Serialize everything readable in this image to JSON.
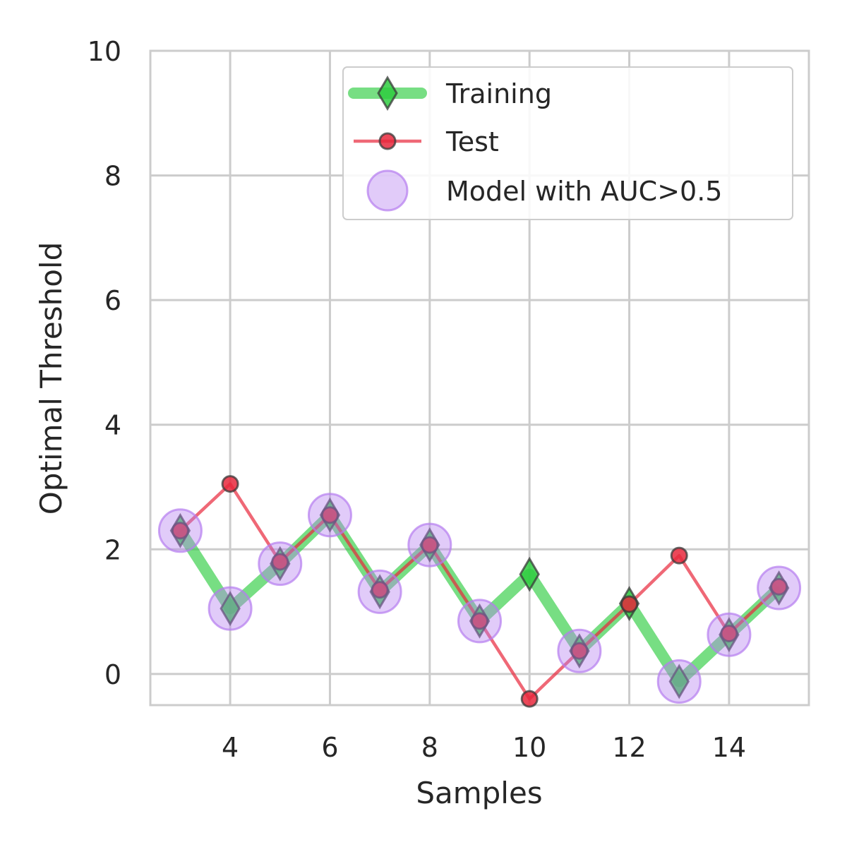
{
  "chart_data": {
    "type": "line",
    "title": "",
    "xlabel": "Samples",
    "ylabel": "Optimal Threshold",
    "xlim": [
      2.4,
      15.6
    ],
    "ylim": [
      -0.5,
      10
    ],
    "xticks": [
      4,
      6,
      8,
      10,
      12,
      14
    ],
    "yticks": [
      0,
      2,
      4,
      6,
      8,
      10
    ],
    "grid": true,
    "legend_position": "top-right",
    "x": [
      3,
      4,
      5,
      6,
      7,
      8,
      9,
      10,
      11,
      12,
      13,
      14,
      15
    ],
    "series": [
      {
        "name": "Training",
        "marker": "diamond",
        "color": "#2ecc40",
        "values": [
          2.3,
          1.05,
          1.77,
          2.55,
          1.32,
          2.07,
          0.85,
          1.6,
          0.37,
          1.13,
          -0.12,
          0.63,
          1.38
        ]
      },
      {
        "name": "Test",
        "marker": "circle",
        "color": "#e8283c",
        "values": [
          2.3,
          3.05,
          1.8,
          2.55,
          1.35,
          2.07,
          0.85,
          -0.4,
          0.37,
          1.12,
          1.9,
          0.65,
          1.4
        ]
      },
      {
        "name": "Model with AUC>0.5",
        "marker": "large-circle",
        "color": "#b57cf0",
        "x": [
          3,
          4,
          5,
          6,
          7,
          8,
          9,
          11,
          13,
          14,
          15
        ],
        "values": [
          2.3,
          1.05,
          1.77,
          2.55,
          1.32,
          2.07,
          0.85,
          0.37,
          -0.12,
          0.63,
          1.38
        ]
      }
    ]
  }
}
